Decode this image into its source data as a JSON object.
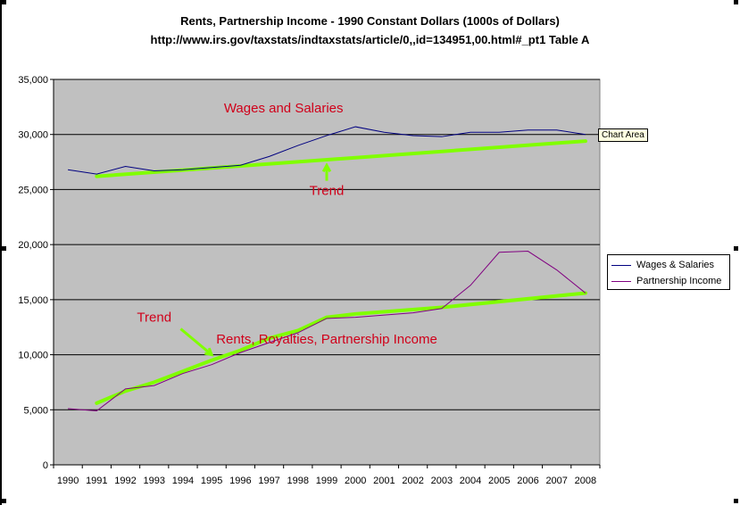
{
  "chart_data": {
    "type": "line",
    "title": "Rents, Partnership Income - 1990 Constant Dollars (1000s of Dollars)",
    "subtitle": "http://www.irs.gov/taxstats/indtaxstats/article/0,,id=134951,00.html#_pt1 Table A",
    "xlabel": "",
    "ylabel": "",
    "categories": [
      "1990",
      "1991",
      "1992",
      "1993",
      "1994",
      "1995",
      "1996",
      "1997",
      "1998",
      "1999",
      "2000",
      "2001",
      "2002",
      "2003",
      "2004",
      "2005",
      "2006",
      "2007",
      "2008"
    ],
    "ylim": [
      0,
      35000
    ],
    "yticks": [
      0,
      5000,
      10000,
      15000,
      20000,
      25000,
      30000,
      35000
    ],
    "ytick_labels": [
      "0",
      "5,000",
      "10,000",
      "15,000",
      "20,000",
      "25,000",
      "30,000",
      "35,000"
    ],
    "grid": true,
    "plot_background": "#c0c0c0",
    "legend_position": "right",
    "series": [
      {
        "name": "Wages & Salaries",
        "color": "#000080",
        "values": [
          26800,
          26400,
          27100,
          26700,
          26800,
          27000,
          27200,
          28000,
          29000,
          29900,
          30700,
          30200,
          29900,
          29800,
          30200,
          30200,
          30400,
          30400,
          30000
        ]
      },
      {
        "name": "Partnership Income",
        "color": "#800080",
        "values": [
          5100,
          4900,
          6900,
          7200,
          8300,
          9100,
          10200,
          11100,
          12000,
          13300,
          13400,
          13600,
          13800,
          14200,
          16300,
          19300,
          19400,
          17700,
          15600
        ]
      }
    ],
    "trendlines": [
      {
        "color": "#80ff00",
        "x_start": "1991",
        "y_start": 26200,
        "x_end": "2008",
        "y_end": 29400
      },
      {
        "color": "#80ff00",
        "points": [
          [
            "1991",
            5600
          ],
          [
            "1992",
            6700
          ],
          [
            "1993",
            7500
          ],
          [
            "1994",
            8500
          ],
          [
            "1995",
            9500
          ],
          [
            "1996",
            10400
          ],
          [
            "1997",
            11500
          ],
          [
            "1998",
            12200
          ],
          [
            "1999",
            13400
          ],
          [
            "2000",
            13700
          ],
          [
            "2003",
            14300
          ],
          [
            "2008",
            15600
          ]
        ]
      }
    ],
    "annotations": [
      {
        "text": "Wages and Salaries",
        "x": "1997.5",
        "y": 32000
      },
      {
        "text": "Trend",
        "x": "1999",
        "y": 24500,
        "arrow_to": [
          "1999",
          27200
        ]
      },
      {
        "text": "Trend",
        "x": "1993",
        "y": 13000,
        "arrow_to": [
          "1995",
          10000
        ]
      },
      {
        "text": "Rents, Royalties, Partnership Income",
        "x": "1999",
        "y": 11000
      }
    ]
  },
  "tooltip": {
    "text": "Chart Area"
  }
}
